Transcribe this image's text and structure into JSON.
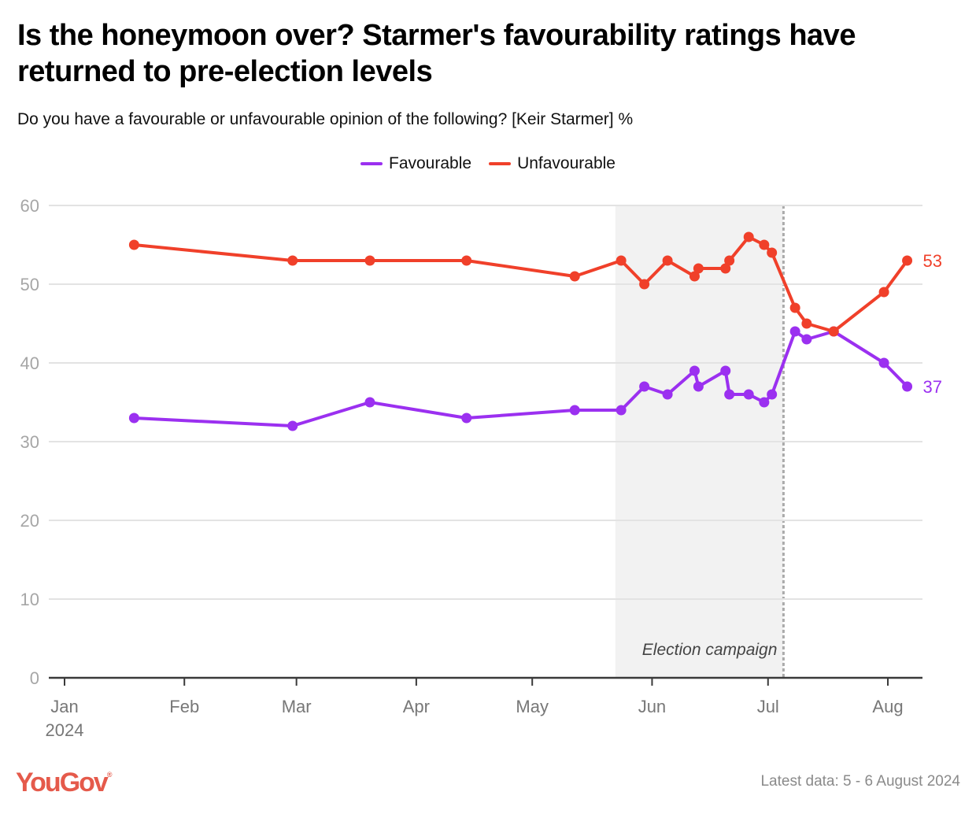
{
  "header": {
    "title": "Is the honeymoon over? Starmer's favourability ratings have returned to pre-election levels",
    "subtitle": "Do you have a favourable or unfavourable opinion of the following? [Keir Starmer] %"
  },
  "footer": {
    "logo": "YouGov",
    "note": "Latest data: 5 - 6 August 2024"
  },
  "chart_data": {
    "type": "line",
    "title": "Is the honeymoon over? Starmer's favourability ratings have returned to pre-election levels",
    "subtitle": "Do you have a favourable or unfavourable opinion of the following? [Keir Starmer] %",
    "xlabel": "",
    "ylabel": "%",
    "x_unit": "day of year 2024",
    "xlim": [
      1,
      230
    ],
    "ylim": [
      0,
      60
    ],
    "yticks": [
      0,
      10,
      20,
      30,
      40,
      50,
      60
    ],
    "ytick_labels": [
      "0",
      "10",
      "20",
      "30",
      "40",
      "50",
      "60"
    ],
    "xticks": [
      {
        "day": 1,
        "label": "Jan",
        "sublabel": "2024"
      },
      {
        "day": 32,
        "label": "Feb"
      },
      {
        "day": 61,
        "label": "Mar"
      },
      {
        "day": 92,
        "label": "Apr"
      },
      {
        "day": 122,
        "label": "May"
      },
      {
        "day": 153,
        "label": "Jun"
      },
      {
        "day": 183,
        "label": "Jul"
      },
      {
        "day": 214,
        "label": "Aug"
      }
    ],
    "grid": true,
    "legend_position": "top-center",
    "x": [
      19,
      60,
      80,
      105,
      133,
      145,
      151,
      157,
      164,
      165,
      172,
      173,
      178,
      182,
      184,
      190,
      193,
      200,
      213,
      219
    ],
    "series": [
      {
        "name": "Favourable",
        "color": "#9b30f0",
        "values": [
          33,
          32,
          35,
          33,
          34,
          34,
          37,
          36,
          39,
          37,
          39,
          36,
          36,
          35,
          36,
          44,
          43,
          44,
          40,
          37
        ],
        "end_label": "37"
      },
      {
        "name": "Unfavourable",
        "color": "#f0402a",
        "values": [
          55,
          53,
          53,
          53,
          51,
          53,
          50,
          53,
          51,
          52,
          52,
          53,
          56,
          55,
          54,
          47,
          45,
          44,
          49,
          53
        ],
        "end_label": "53"
      }
    ],
    "annotations": [
      {
        "type": "shaded_region",
        "from_day": 143.5,
        "to_day": 187,
        "label": "Election campaign",
        "color": "#f2f2f2"
      },
      {
        "type": "dotted_vline",
        "day": 187
      }
    ]
  }
}
